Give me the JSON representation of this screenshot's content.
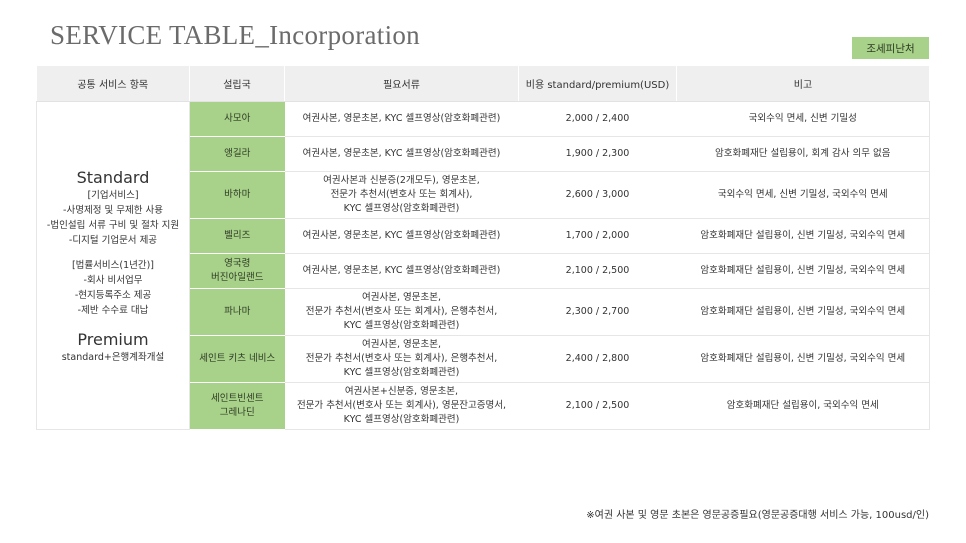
{
  "title": "SERVICE TABLE_Incorporation",
  "tag": "조세피난처",
  "headers": [
    "공통 서비스 항목",
    "설립국",
    "필요서류",
    "비용 standard/premium(USD)",
    "비고"
  ],
  "service": {
    "standard_title": "Standard",
    "corp_lines": [
      "[기업서비스]",
      "-사명제정 및 무제한 사용",
      "-법인설립 서류 구비 및 절차 지원",
      "-디지털 기업문서 제공"
    ],
    "legal_lines": [
      "[법률서비스(1년간)]",
      "-회사 비서업무",
      "-현지등록주소 제공",
      "-제반 수수료 대납"
    ],
    "premium_title": "Premium",
    "premium_line": "standard+은행계좌개설"
  },
  "rows": [
    {
      "country": "사모아",
      "docs": "여권사본, 영문초본, KYC 셀프영상(암호화폐관련)",
      "cost": "2,000 / 2,400",
      "note": "국외수익 면세, 신변 기밀성"
    },
    {
      "country": "앵길라",
      "docs": "여권사본, 영문초본, KYC 셀프영상(암호화폐관련)",
      "cost": "1,900 / 2,300",
      "note": "암호화폐재단 설립용이, 회계 감사 의무 없음"
    },
    {
      "country": "바하마",
      "docs": "여권사본과 신분증(2개모두), 영문초본,\n전문가 추천서(변호사 또는 회계사),\nKYC 셀프영상(암호화폐관련)",
      "cost": "2,600 / 3,000",
      "note": "국외수익 면세, 신변 기밀성, 국외수익 면세"
    },
    {
      "country": "벨리즈",
      "docs": "여권사본, 영문초본, KYC 셀프영상(암호화폐관련)",
      "cost": "1,700 / 2,000",
      "note": "암호화폐재단 설립용이, 신변 기밀성, 국외수익 면세"
    },
    {
      "country": "영국령\n버진아일랜드",
      "docs": "여권사본, 영문초본, KYC 셀프영상(암호화폐관련)",
      "cost": "2,100 / 2,500",
      "note": "암호화폐재단 설립용이, 신변 기밀성, 국외수익 면세"
    },
    {
      "country": "파나마",
      "docs": "여권사본, 영문초본,\n전문가 추천서(변호사 또는 회계사), 은행추천서,\nKYC 셀프영상(암호화폐관련)",
      "cost": "2,300 / 2,700",
      "note": "암호화폐재단 설립용이, 신변 기밀성, 국외수익 면세"
    },
    {
      "country": "세인트 키츠 네비스",
      "docs": "여권사본, 영문초본,\n전문가 추천서(변호사 또는 회계사), 은행추천서,\nKYC 셀프영상(암호화폐관련)",
      "cost": "2,400 / 2,800",
      "note": "암호화폐재단 설립용이, 신변 기밀성, 국외수익 면세"
    },
    {
      "country": "세인트빈센트\n그레나딘",
      "docs": "여권사본+신분증, 영문초본,\n전문가 추천서(변호사 또는 회계사), 영문잔고증명서,\nKYC 셀프영상(암호화폐관련)",
      "cost": "2,100 / 2,500",
      "note": "암호화폐재단 설립용이, 국외수익 면세"
    }
  ],
  "footnote": "※여권 사본 및 영문 초본은 영문공증필요(영문공증대행 서비스 가능, 100usd/인)"
}
